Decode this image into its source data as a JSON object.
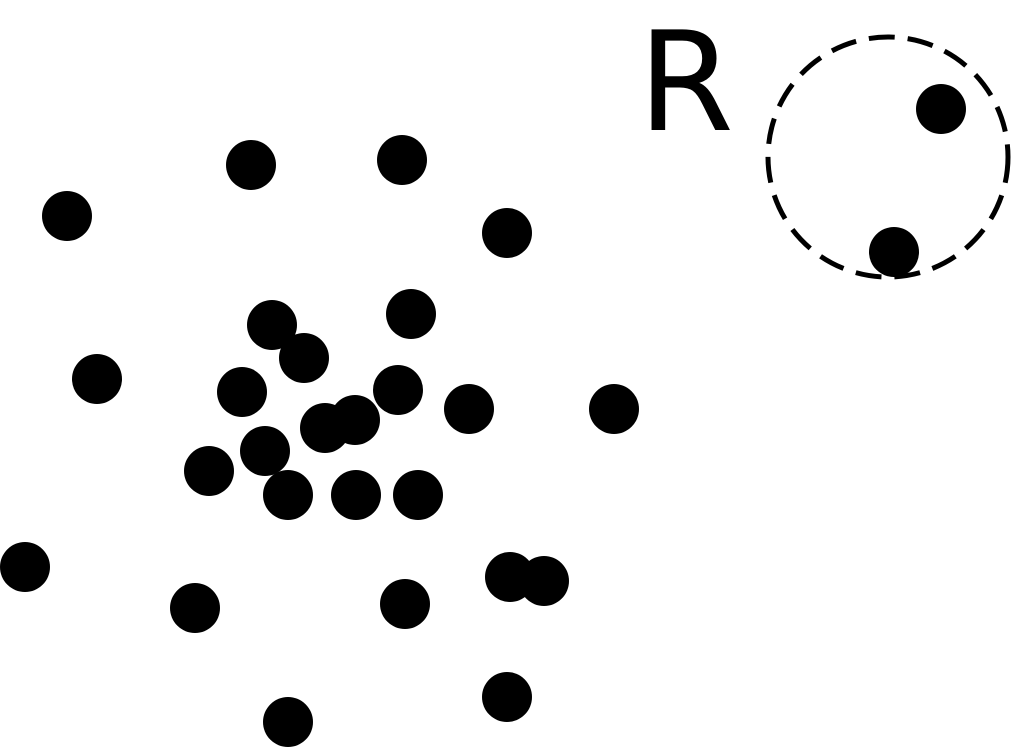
{
  "diagram": {
    "radius_label": "R",
    "colors": {
      "dot": "#000000",
      "circle_stroke": "#000000",
      "background": "#ffffff"
    },
    "elements": {
      "neighborhood_circle": "dashed-circle",
      "points": "filled-dots"
    }
  }
}
